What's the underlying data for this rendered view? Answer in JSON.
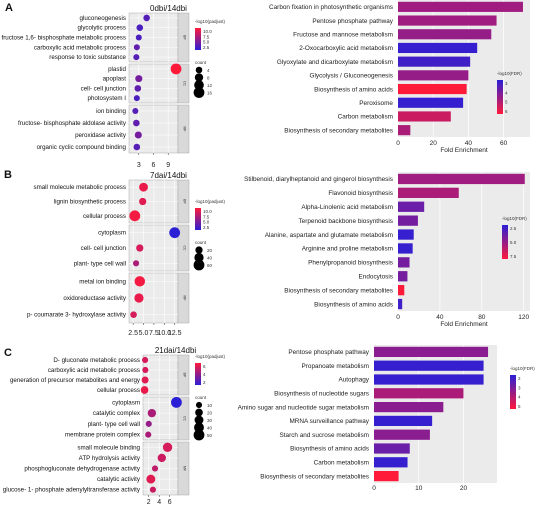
{
  "chart_data": [
    {
      "type": "scatter",
      "panel_letter": "A",
      "title": "0dbi/14dbi",
      "xlabel": "",
      "xticks": [
        3,
        6,
        9
      ],
      "xlim": [
        1,
        11
      ],
      "size_legend_title": "count",
      "size_legend": [
        4,
        8,
        12,
        16
      ],
      "color_legend_title": "-log10(padjust)",
      "color_ticks": [
        "10.0",
        "7.5",
        "5.0",
        "2.5"
      ],
      "colors": {
        "low": "#2b1fd6",
        "high": "#ff1a3a"
      },
      "groups": [
        {
          "name": "BP",
          "items": [
            {
              "label": "gluconeogenesis",
              "x": 4.6,
              "count": 4,
              "color_value": 0.2
            },
            {
              "label": "glycolytic process",
              "x": 3.2,
              "count": 4,
              "color_value": 0.15
            },
            {
              "label": "fructose 1,6- bisphosphate metabolic process",
              "x": 3.0,
              "count": 3,
              "color_value": 0.15
            },
            {
              "label": "carboxylic acid metabolic process",
              "x": 2.6,
              "count": 3,
              "color_value": 0.25
            },
            {
              "label": "response to toxic substance",
              "x": 2.5,
              "count": 3,
              "color_value": 0.2
            }
          ]
        },
        {
          "name": "CC",
          "items": [
            {
              "label": "plastid",
              "x": 10.6,
              "count": 16,
              "color_value": 1.0
            },
            {
              "label": "apoplast",
              "x": 3.0,
              "count": 5,
              "color_value": 0.35
            },
            {
              "label": "cell- cell junction",
              "x": 2.8,
              "count": 4,
              "color_value": 0.25
            },
            {
              "label": "photosystem I",
              "x": 2.6,
              "count": 3,
              "color_value": 0.15
            }
          ]
        },
        {
          "name": "MF",
          "items": [
            {
              "label": "ion binding",
              "x": 2.3,
              "count": 3,
              "color_value": 0.2
            },
            {
              "label": "fructose- bisphosphate aldolase activity",
              "x": 2.5,
              "count": 4,
              "color_value": 0.25
            },
            {
              "label": "peroxidase activity",
              "x": 2.9,
              "count": 5,
              "color_value": 0.35
            },
            {
              "label": "organic cyclic compound binding",
              "x": 2.6,
              "count": 4,
              "color_value": 0.2
            }
          ]
        }
      ]
    },
    {
      "type": "bar",
      "panel_letter": "",
      "orientation": "horizontal",
      "xlabel": "Fold Enrichment",
      "xticks": [
        0,
        20,
        40,
        60
      ],
      "xlim": [
        0,
        75
      ],
      "color_legend_title": "-log10(FDR)",
      "color_ticks": [
        "3",
        "4",
        "5",
        "6"
      ],
      "colors": {
        "low": "#2b1fd6",
        "high": "#ff1a3a"
      },
      "categories": [
        "Carbon fixation in photosynthetic organisms",
        "Pentose phosphate pathway",
        "Fructose and mannose metabolism",
        "2-Oxocarboxylic acid metabolism",
        "Glyoxylate and dicarboxylate metabolism",
        "Glycolysis / Gluconeogenesis",
        "Biosynthesis of amino acids",
        "Peroxisome",
        "Carbon metabolism",
        "Biosynthesis of secondary metabolites"
      ],
      "values": [
        71,
        56,
        53,
        45,
        41,
        40,
        39,
        37,
        30,
        7
      ],
      "color_values": [
        0.55,
        0.55,
        0.5,
        0.05,
        0.1,
        0.5,
        1.0,
        0.05,
        0.75,
        0.6
      ]
    },
    {
      "type": "scatter",
      "panel_letter": "B",
      "title": "7dai/14dbi",
      "xlabel": "",
      "xticks": [
        "2.5",
        "5.0",
        "7.5",
        "10.0",
        "12.5"
      ],
      "xlim": [
        1.5,
        13.3
      ],
      "size_legend_title": "count",
      "size_legend": [
        20,
        40,
        60
      ],
      "color_legend_title": "-log10(padjust)",
      "color_ticks": [
        "10.0",
        "7.5",
        "5.0",
        "2.5"
      ],
      "colors": {
        "low": "#2b1fd6",
        "high": "#ff1a3a"
      },
      "groups": [
        {
          "name": "BP",
          "items": [
            {
              "label": "small molecule metabolic process",
              "x": 5.0,
              "count": 35,
              "color_value": 0.9
            },
            {
              "label": "lignin biosynthetic process",
              "x": 4.8,
              "count": 20,
              "color_value": 0.85
            },
            {
              "label": "cellular process",
              "x": 2.9,
              "count": 60,
              "color_value": 0.95
            }
          ]
        },
        {
          "name": "CC",
          "items": [
            {
              "label": "cytoplasm",
              "x": 12.5,
              "count": 60,
              "color_value": 0.0
            },
            {
              "label": "cell- cell junction",
              "x": 4.1,
              "count": 20,
              "color_value": 0.8
            },
            {
              "label": "plant- type cell wall",
              "x": 3.2,
              "count": 12,
              "color_value": 0.6
            }
          ]
        },
        {
          "name": "MF",
          "items": [
            {
              "label": "metal ion binding",
              "x": 4.1,
              "count": 55,
              "color_value": 0.95
            },
            {
              "label": "oxidoreductase activity",
              "x": 3.9,
              "count": 40,
              "color_value": 0.9
            },
            {
              "label": "p- coumarate 3- hydroxylase activity",
              "x": 2.6,
              "count": 15,
              "color_value": 0.8
            }
          ]
        }
      ]
    },
    {
      "type": "bar",
      "panel_letter": "",
      "orientation": "horizontal",
      "xlabel": "Fold Enrichment",
      "xticks": [
        0,
        40,
        80,
        120
      ],
      "xlim": [
        0,
        126
      ],
      "color_legend_title": "-log10(FDR)",
      "color_ticks": [
        "2.5",
        "5.0",
        "7.5"
      ],
      "colors": {
        "low": "#2b1fd6",
        "high": "#ff1a3a"
      },
      "categories": [
        "Stilbenoid, diarylheptanoid and gingerol biosynthesis",
        "Flavonoid biosynthesis",
        "Alpha-Linolenic acid metabolism",
        "Terpenoid backbone biosynthesis",
        "Alanine, aspartate and glutamate metabolism",
        "Arginine and proline metabolism",
        "Phenylpropanoid biosynthesis",
        "Endocytosis",
        "Biosynthesis of secondary metabolites",
        "Biosynthesis of amino acids"
      ],
      "values": [
        121,
        58,
        25,
        19,
        15,
        14,
        11,
        9,
        6,
        4
      ],
      "color_values": [
        0.55,
        0.6,
        0.3,
        0.35,
        0.05,
        0.05,
        0.35,
        0.35,
        1.0,
        0.1
      ]
    },
    {
      "type": "scatter",
      "panel_letter": "C",
      "title": "21dai/14dbi",
      "xlabel": "",
      "xticks": [
        2,
        4,
        6
      ],
      "xlim": [
        0.9,
        7.6
      ],
      "size_legend_title": "count",
      "size_legend": [
        10,
        20,
        30,
        40,
        50
      ],
      "color_legend_title": "-log10(padjust)",
      "color_ticks": [
        "6",
        "4",
        "2"
      ],
      "colors": {
        "low": "#2b1fd6",
        "high": "#ff1a3a"
      },
      "groups": [
        {
          "name": "BP",
          "items": [
            {
              "label": "D- gluconate metabolic process",
              "x": 1.3,
              "count": 10,
              "color_value": 0.8
            },
            {
              "label": "carboxylic acid metabolic process",
              "x": 1.35,
              "count": 10,
              "color_value": 0.8
            },
            {
              "label": "generation of precursor metabolites and energy",
              "x": 1.3,
              "count": 15,
              "color_value": 0.85
            },
            {
              "label": "cellular process",
              "x": 1.2,
              "count": 20,
              "color_value": 0.9
            }
          ]
        },
        {
          "name": "CC",
          "items": [
            {
              "label": "cytoplasm",
              "x": 7.3,
              "count": 50,
              "color_value": 0.0
            },
            {
              "label": "catalytic complex",
              "x": 2.6,
              "count": 25,
              "color_value": 0.6
            },
            {
              "label": "plant- type cell wall",
              "x": 2.0,
              "count": 10,
              "color_value": 0.5
            },
            {
              "label": "membrane protein complex",
              "x": 1.9,
              "count": 10,
              "color_value": 0.6
            }
          ]
        },
        {
          "name": "MF",
          "items": [
            {
              "label": "small molecule binding",
              "x": 5.6,
              "count": 35,
              "color_value": 0.8
            },
            {
              "label": "ATP hydrolysis activity",
              "x": 4.5,
              "count": 25,
              "color_value": 0.75
            },
            {
              "label": "phosphogluconate dehydrogenase activity",
              "x": 3.2,
              "count": 10,
              "color_value": 0.7
            },
            {
              "label": "catalytic activity",
              "x": 2.4,
              "count": 30,
              "color_value": 0.85
            },
            {
              "label": "glucose- 1- phosphate adenylyltransferase activity",
              "x": 2.8,
              "count": 10,
              "color_value": 0.75
            }
          ]
        }
      ]
    },
    {
      "type": "bar",
      "panel_letter": "",
      "orientation": "horizontal",
      "xlabel": "",
      "xticks": [
        0,
        10,
        20
      ],
      "xlim": [
        0,
        27.5
      ],
      "color_legend_title": "-log10(FDR)",
      "color_ticks": [
        "2",
        "3",
        "4",
        "5"
      ],
      "colors": {
        "low": "#2b1fd6",
        "high": "#ff1a3a"
      },
      "categories": [
        "Pentose phosphate pathway",
        "Propanoate metabolism",
        "Autophagy",
        "Biosynthesis of nucleotide sugars",
        "Amino sugar and nucleotide sugar metabolism",
        "MRNA surveillance pathway",
        "Starch and sucrose metabolism",
        "Biosynthesis of amino acids",
        "Carbon metabolism",
        "Biosynthesis of secondary metabolites"
      ],
      "values": [
        25.5,
        24.5,
        24.5,
        20,
        15.5,
        13,
        12.5,
        8,
        7.5,
        5.5
      ],
      "color_values": [
        0.45,
        0.05,
        0.05,
        0.6,
        0.45,
        0.05,
        0.45,
        0.3,
        0.05,
        1.0
      ]
    }
  ]
}
